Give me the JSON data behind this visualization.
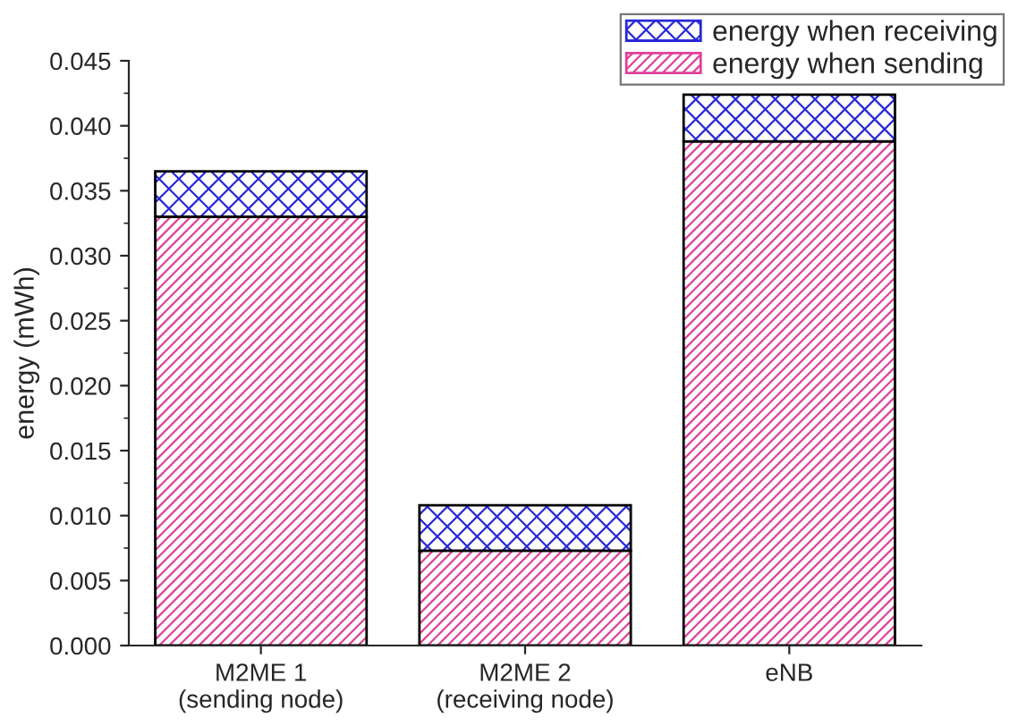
{
  "chart_data": {
    "type": "bar",
    "stacked": true,
    "ylabel": "energy (mWh)",
    "categories": [
      "M2ME 1\n(sending node)",
      "M2ME 2\n(receiving node)",
      "eNB"
    ],
    "series": [
      {
        "name": "energy when sending",
        "color": "#e0409a",
        "values": [
          0.033,
          0.0073,
          0.0388
        ]
      },
      {
        "name": "energy when receiving",
        "color": "#2828d8",
        "values": [
          0.0035,
          0.0035,
          0.0036
        ]
      }
    ],
    "ylim": [
      0,
      0.045
    ],
    "yticks": [
      {
        "value": 0,
        "label": "0.000"
      },
      {
        "value": 0.005,
        "label": "0.005"
      },
      {
        "value": 0.01,
        "label": "0.010"
      },
      {
        "value": 0.015,
        "label": "0.015"
      },
      {
        "value": 0.02,
        "label": "0.020"
      },
      {
        "value": 0.025,
        "label": "0.025"
      },
      {
        "value": 0.03,
        "label": "0.030"
      },
      {
        "value": 0.035,
        "label": "0.035"
      },
      {
        "value": 0.04,
        "label": "0.040"
      },
      {
        "value": 0.045,
        "label": "0.045"
      }
    ],
    "legend": "top right",
    "grid": false
  }
}
